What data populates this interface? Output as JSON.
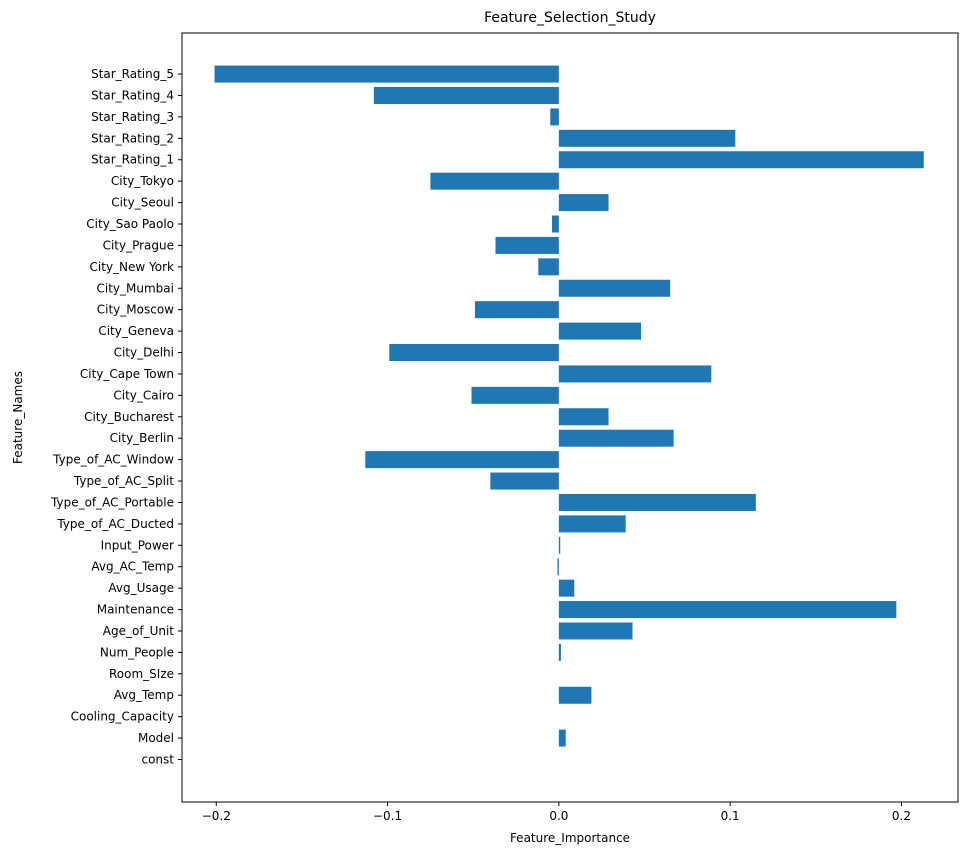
{
  "chart_data": {
    "type": "bar",
    "orientation": "horizontal",
    "title": "Feature_Selection_Study",
    "xlabel": "Feature_Importance",
    "ylabel": "Feature_Names",
    "xlim": [
      -0.22,
      0.233
    ],
    "xticks": [
      -0.2,
      -0.1,
      0.0,
      0.1,
      0.2
    ],
    "xtick_labels": [
      "−0.2",
      "−0.1",
      "0.0",
      "0.1",
      "0.2"
    ],
    "grid": false,
    "bar_color": "#1f77b4",
    "categories": [
      "const",
      "Model",
      "Cooling_Capacity",
      "Avg_Temp",
      "Room_SIze",
      "Num_People",
      "Age_of_Unit",
      "Maintenance",
      "Avg_Usage",
      "Avg_AC_Temp",
      "Input_Power",
      "Type_of_AC_Ducted",
      "Type_of_AC_Portable",
      "Type_of_AC_Split",
      "Type_of_AC_Window",
      "City_Berlin",
      "City_Bucharest",
      "City_Cairo",
      "City_Cape Town",
      "City_Delhi",
      "City_Geneva",
      "City_Moscow",
      "City_Mumbai",
      "City_New York",
      "City_Prague",
      "City_Sao Paolo",
      "City_Seoul",
      "City_Tokyo",
      "Star_Rating_1",
      "Star_Rating_2",
      "Star_Rating_3",
      "Star_Rating_4",
      "Star_Rating_5"
    ],
    "values": [
      0.0,
      0.004,
      0.0,
      0.019,
      0.0,
      0.0012,
      0.043,
      0.197,
      0.009,
      -0.0008,
      0.0008,
      0.039,
      0.115,
      -0.04,
      -0.113,
      0.067,
      0.029,
      -0.051,
      0.089,
      -0.099,
      0.048,
      -0.049,
      0.065,
      -0.012,
      -0.037,
      -0.004,
      0.029,
      -0.075,
      0.213,
      0.103,
      -0.005,
      -0.108,
      -0.201
    ]
  }
}
